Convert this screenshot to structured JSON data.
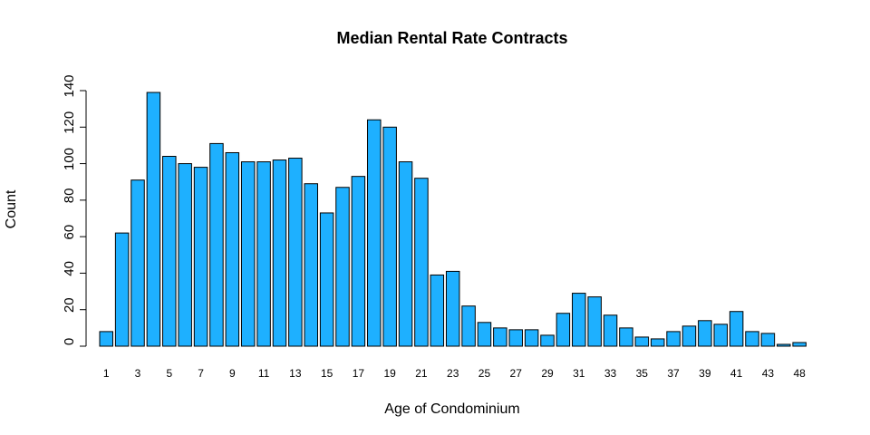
{
  "chart_data": {
    "type": "bar",
    "title": "Median Rental Rate Contracts",
    "xlabel": "Age of Condominium",
    "ylabel": "Count",
    "categories": [
      "1",
      "2",
      "3",
      "4",
      "5",
      "6",
      "7",
      "8",
      "9",
      "10",
      "11",
      "12",
      "13",
      "14",
      "15",
      "16",
      "17",
      "18",
      "19",
      "20",
      "21",
      "22",
      "23",
      "24",
      "25",
      "26",
      "27",
      "28",
      "29",
      "30",
      "31",
      "32",
      "33",
      "34",
      "35",
      "36",
      "37",
      "38",
      "39",
      "40",
      "41",
      "42",
      "43",
      "45",
      "48"
    ],
    "values": [
      8,
      62,
      91,
      139,
      104,
      100,
      98,
      111,
      106,
      101,
      101,
      102,
      103,
      89,
      73,
      87,
      93,
      124,
      120,
      101,
      92,
      39,
      41,
      22,
      13,
      10,
      9,
      9,
      6,
      18,
      29,
      27,
      17,
      10,
      5,
      4,
      8,
      11,
      14,
      12,
      19,
      8,
      7,
      1,
      2
    ],
    "visible_category_labels": [
      "1",
      "3",
      "5",
      "7",
      "9",
      "11",
      "13",
      "15",
      "17",
      "19",
      "21",
      "23",
      "25",
      "27",
      "29",
      "31",
      "33",
      "35",
      "37",
      "39",
      "41",
      "43",
      "48"
    ],
    "yticks": [
      0,
      20,
      40,
      60,
      80,
      100,
      120,
      140
    ],
    "ylim": [
      0,
      140
    ],
    "bar_color": "#1eb0ff",
    "grid": false,
    "legend": "none"
  }
}
